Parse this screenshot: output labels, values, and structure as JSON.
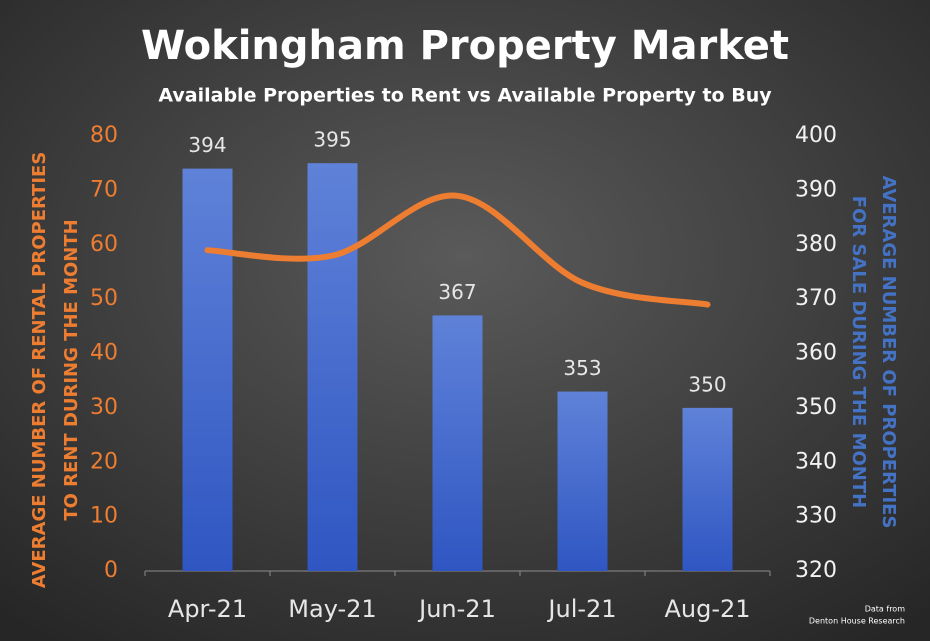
{
  "chart_data": {
    "type": "bar",
    "title": "Wokingham Property Market",
    "subtitle": "Available Properties to Rent vs Available Property to Buy",
    "y_label": [
      "AVERAGE NUMBER OF RENTAL PROPERTIES",
      "TO RENT DURING  THE MONTH"
    ],
    "y2_label": [
      "AVERAGE NUMBER OF PROPERTIES",
      "FOR SALE DURING THE MONTH"
    ],
    "source": [
      "Data from",
      "Denton House Research"
    ],
    "categories": [
      "Apr-21",
      "May-21",
      "Jun-21",
      "Jul-21",
      "Aug-21"
    ],
    "series": [
      {
        "type": "bar",
        "axis": "y2",
        "color": "#4a72d4",
        "values": [
          394,
          395,
          367,
          353,
          350
        ]
      },
      {
        "type": "line",
        "axis": "y",
        "color": "#ed7d31",
        "values": [
          59,
          58,
          69,
          53,
          49
        ]
      }
    ],
    "ylim": [
      0,
      80
    ],
    "yticks": [
      0,
      10,
      20,
      30,
      40,
      50,
      60,
      70,
      80
    ],
    "y2lim": [
      320,
      400
    ],
    "y2ticks": [
      320,
      330,
      340,
      350,
      360,
      370,
      380,
      390,
      400
    ]
  }
}
